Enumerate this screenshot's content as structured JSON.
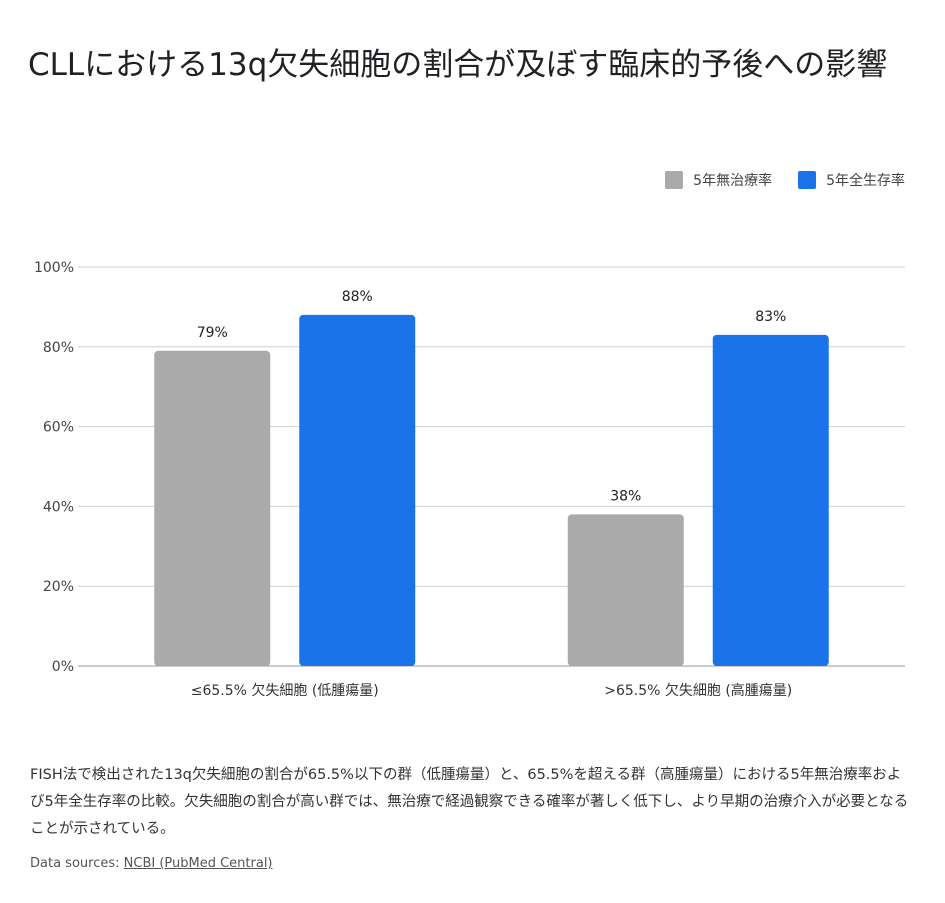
{
  "title": "CLLにおける13q欠失細胞の割合が及ぼす臨床的予後への影響",
  "description": "FISH法で検出された13q欠失細胞の割合が65.5%以下の群（低腫瘍量）と、65.5%を超える群（高腫瘍量）における5年無治療率および5年全生存率の比較。欠失細胞の割合が高い群では、無治療で経過観察できる確率が著しく低下し、より早期の治療介入が必要となることが示されている。",
  "source": {
    "prefix": "Data sources: ",
    "link": "NCBI (PubMed Central)"
  },
  "chart_data": {
    "type": "bar",
    "categories": [
      "≤65.5% 欠失細胞 (低腫瘍量)",
      ">65.5% 欠失細胞 (高腫瘍量)"
    ],
    "series": [
      {
        "name": "5年無治療率",
        "values": [
          79,
          38
        ],
        "color": "#aaaaaa"
      },
      {
        "name": "5年全生存率",
        "values": [
          88,
          83
        ],
        "color": "#1a73e8"
      }
    ],
    "data_labels": [
      [
        "79%",
        "38%"
      ],
      [
        "88%",
        "83%"
      ]
    ],
    "ylim": [
      0,
      100
    ],
    "yticks": [
      "0%",
      "20%",
      "40%",
      "60%",
      "80%",
      "100%"
    ],
    "grid": true,
    "legend": "top-right"
  }
}
